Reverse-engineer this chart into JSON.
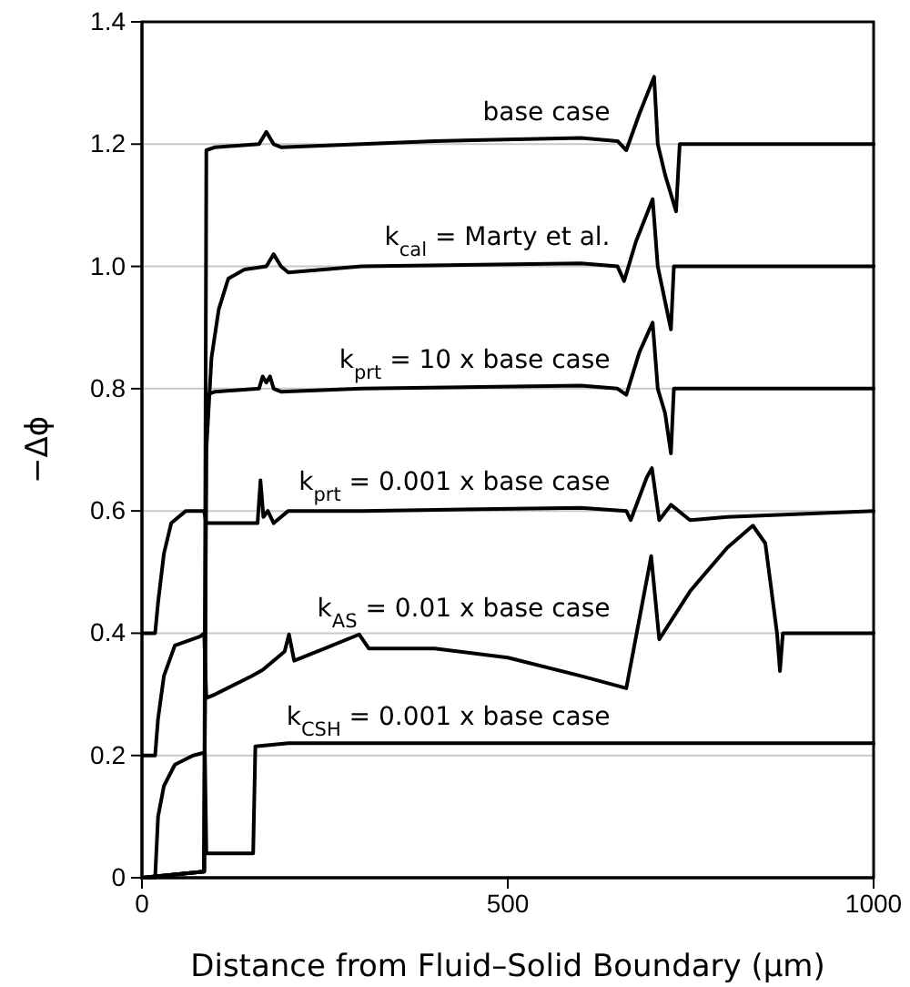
{
  "chart_data": {
    "type": "line",
    "xlabel": "Distance from Fluid–Solid Boundary (μm)",
    "ylabel": "−Δϕ",
    "xlim": [
      0,
      1000
    ],
    "xticks": [
      0,
      500,
      1000
    ],
    "ylim": [
      0,
      1.4
    ],
    "yticks": [
      0,
      {
        "value": 0.2,
        "label": "0.2"
      },
      {
        "value": 0.4,
        "label": "0.4"
      },
      {
        "value": 0.6,
        "label": "0.6"
      },
      {
        "value": 0.8,
        "label": "0.8"
      },
      {
        "value": 1,
        "label": "1.0"
      },
      {
        "value": 1.2,
        "label": "1.2"
      },
      {
        "value": 1.4,
        "label": "1.4"
      }
    ],
    "grid": "y",
    "line_style": "solid",
    "series": [
      {
        "name": "base case",
        "color": "#000000",
        "x": [
          0,
          85,
          88,
          100,
          160,
          170,
          180,
          190,
          300,
          400,
          600,
          650,
          662,
          680,
          700,
          705,
          715,
          730,
          735,
          1000
        ],
        "values": [
          0,
          0.01,
          1.19,
          1.195,
          1.2,
          1.22,
          1.2,
          1.195,
          1.2,
          1.205,
          1.21,
          1.205,
          1.19,
          1.25,
          1.31,
          1.2,
          1.15,
          1.09,
          1.2,
          1.2
        ]
      },
      {
        "name": "k$_{cal}$ = Marty et al.",
        "color": "#000000",
        "x": [
          0,
          85,
          88,
          95,
          105,
          118,
          140,
          170,
          180,
          190,
          200,
          300,
          600,
          650,
          659,
          675,
          698,
          705,
          723,
          727,
          1000
        ],
        "values": [
          0,
          0.01,
          0.7,
          0.85,
          0.93,
          0.98,
          0.995,
          1,
          1.02,
          1,
          0.99,
          1,
          1.005,
          1,
          0.976,
          1.04,
          1.11,
          1,
          0.897,
          1,
          1
        ]
      },
      {
        "name": "k$_{prt}$ = 10 x base case",
        "color": "#000000",
        "x": [
          0,
          85,
          88,
          100,
          160,
          165,
          170,
          175,
          180,
          190,
          300,
          600,
          650,
          662,
          680,
          698,
          705,
          715,
          723,
          727,
          1000
        ],
        "values": [
          0,
          0.01,
          0.79,
          0.795,
          0.8,
          0.82,
          0.81,
          0.82,
          0.8,
          0.795,
          0.8,
          0.805,
          0.8,
          0.79,
          0.86,
          0.908,
          0.8,
          0.76,
          0.694,
          0.8,
          0.8
        ]
      },
      {
        "name": "k$_{prt}$ = 0.001 x base case",
        "color": "#000000",
        "x": [
          0,
          18,
          22,
          30,
          40,
          60,
          85,
          88,
          150,
          158,
          162,
          166,
          172,
          180,
          200,
          300,
          600,
          662,
          668,
          690,
          697,
          707,
          723,
          749,
          800,
          1000
        ],
        "values": [
          0.4,
          0.4,
          0.45,
          0.53,
          0.58,
          0.6,
          0.6,
          0.58,
          0.58,
          0.58,
          0.65,
          0.59,
          0.6,
          0.58,
          0.6,
          0.6,
          0.605,
          0.6,
          0.585,
          0.655,
          0.67,
          0.585,
          0.61,
          0.585,
          0.59,
          0.6
        ]
      },
      {
        "name": "k$_{AS}$ = 0.01 x base case",
        "color": "#000000",
        "x": [
          0,
          18,
          22,
          30,
          45,
          80,
          85,
          88,
          100,
          150,
          165,
          175,
          195,
          201,
          208,
          250,
          297,
          310,
          400,
          500,
          600,
          662,
          696,
          707,
          750,
          800,
          835,
          852,
          868,
          872,
          876,
          882,
          1000
        ],
        "values": [
          0.2,
          0.2,
          0.26,
          0.33,
          0.38,
          0.395,
          0.4,
          0.294,
          0.3,
          0.33,
          0.34,
          0.35,
          0.37,
          0.398,
          0.355,
          0.375,
          0.398,
          0.375,
          0.375,
          0.36,
          0.33,
          0.31,
          0.526,
          0.39,
          0.47,
          0.54,
          0.576,
          0.547,
          0.4,
          0.338,
          0.4,
          0.4,
          0.4
        ]
      },
      {
        "name": "k$_{CSH}$ = 0.001 x base case",
        "color": "#000000",
        "x": [
          0,
          18,
          22,
          30,
          45,
          70,
          86,
          88,
          150,
          152,
          155,
          200,
          1000
        ],
        "values": [
          0,
          0,
          0.1,
          0.15,
          0.185,
          0.2,
          0.205,
          0.04,
          0.04,
          0.04,
          0.215,
          0.22,
          0.22
        ]
      }
    ]
  }
}
